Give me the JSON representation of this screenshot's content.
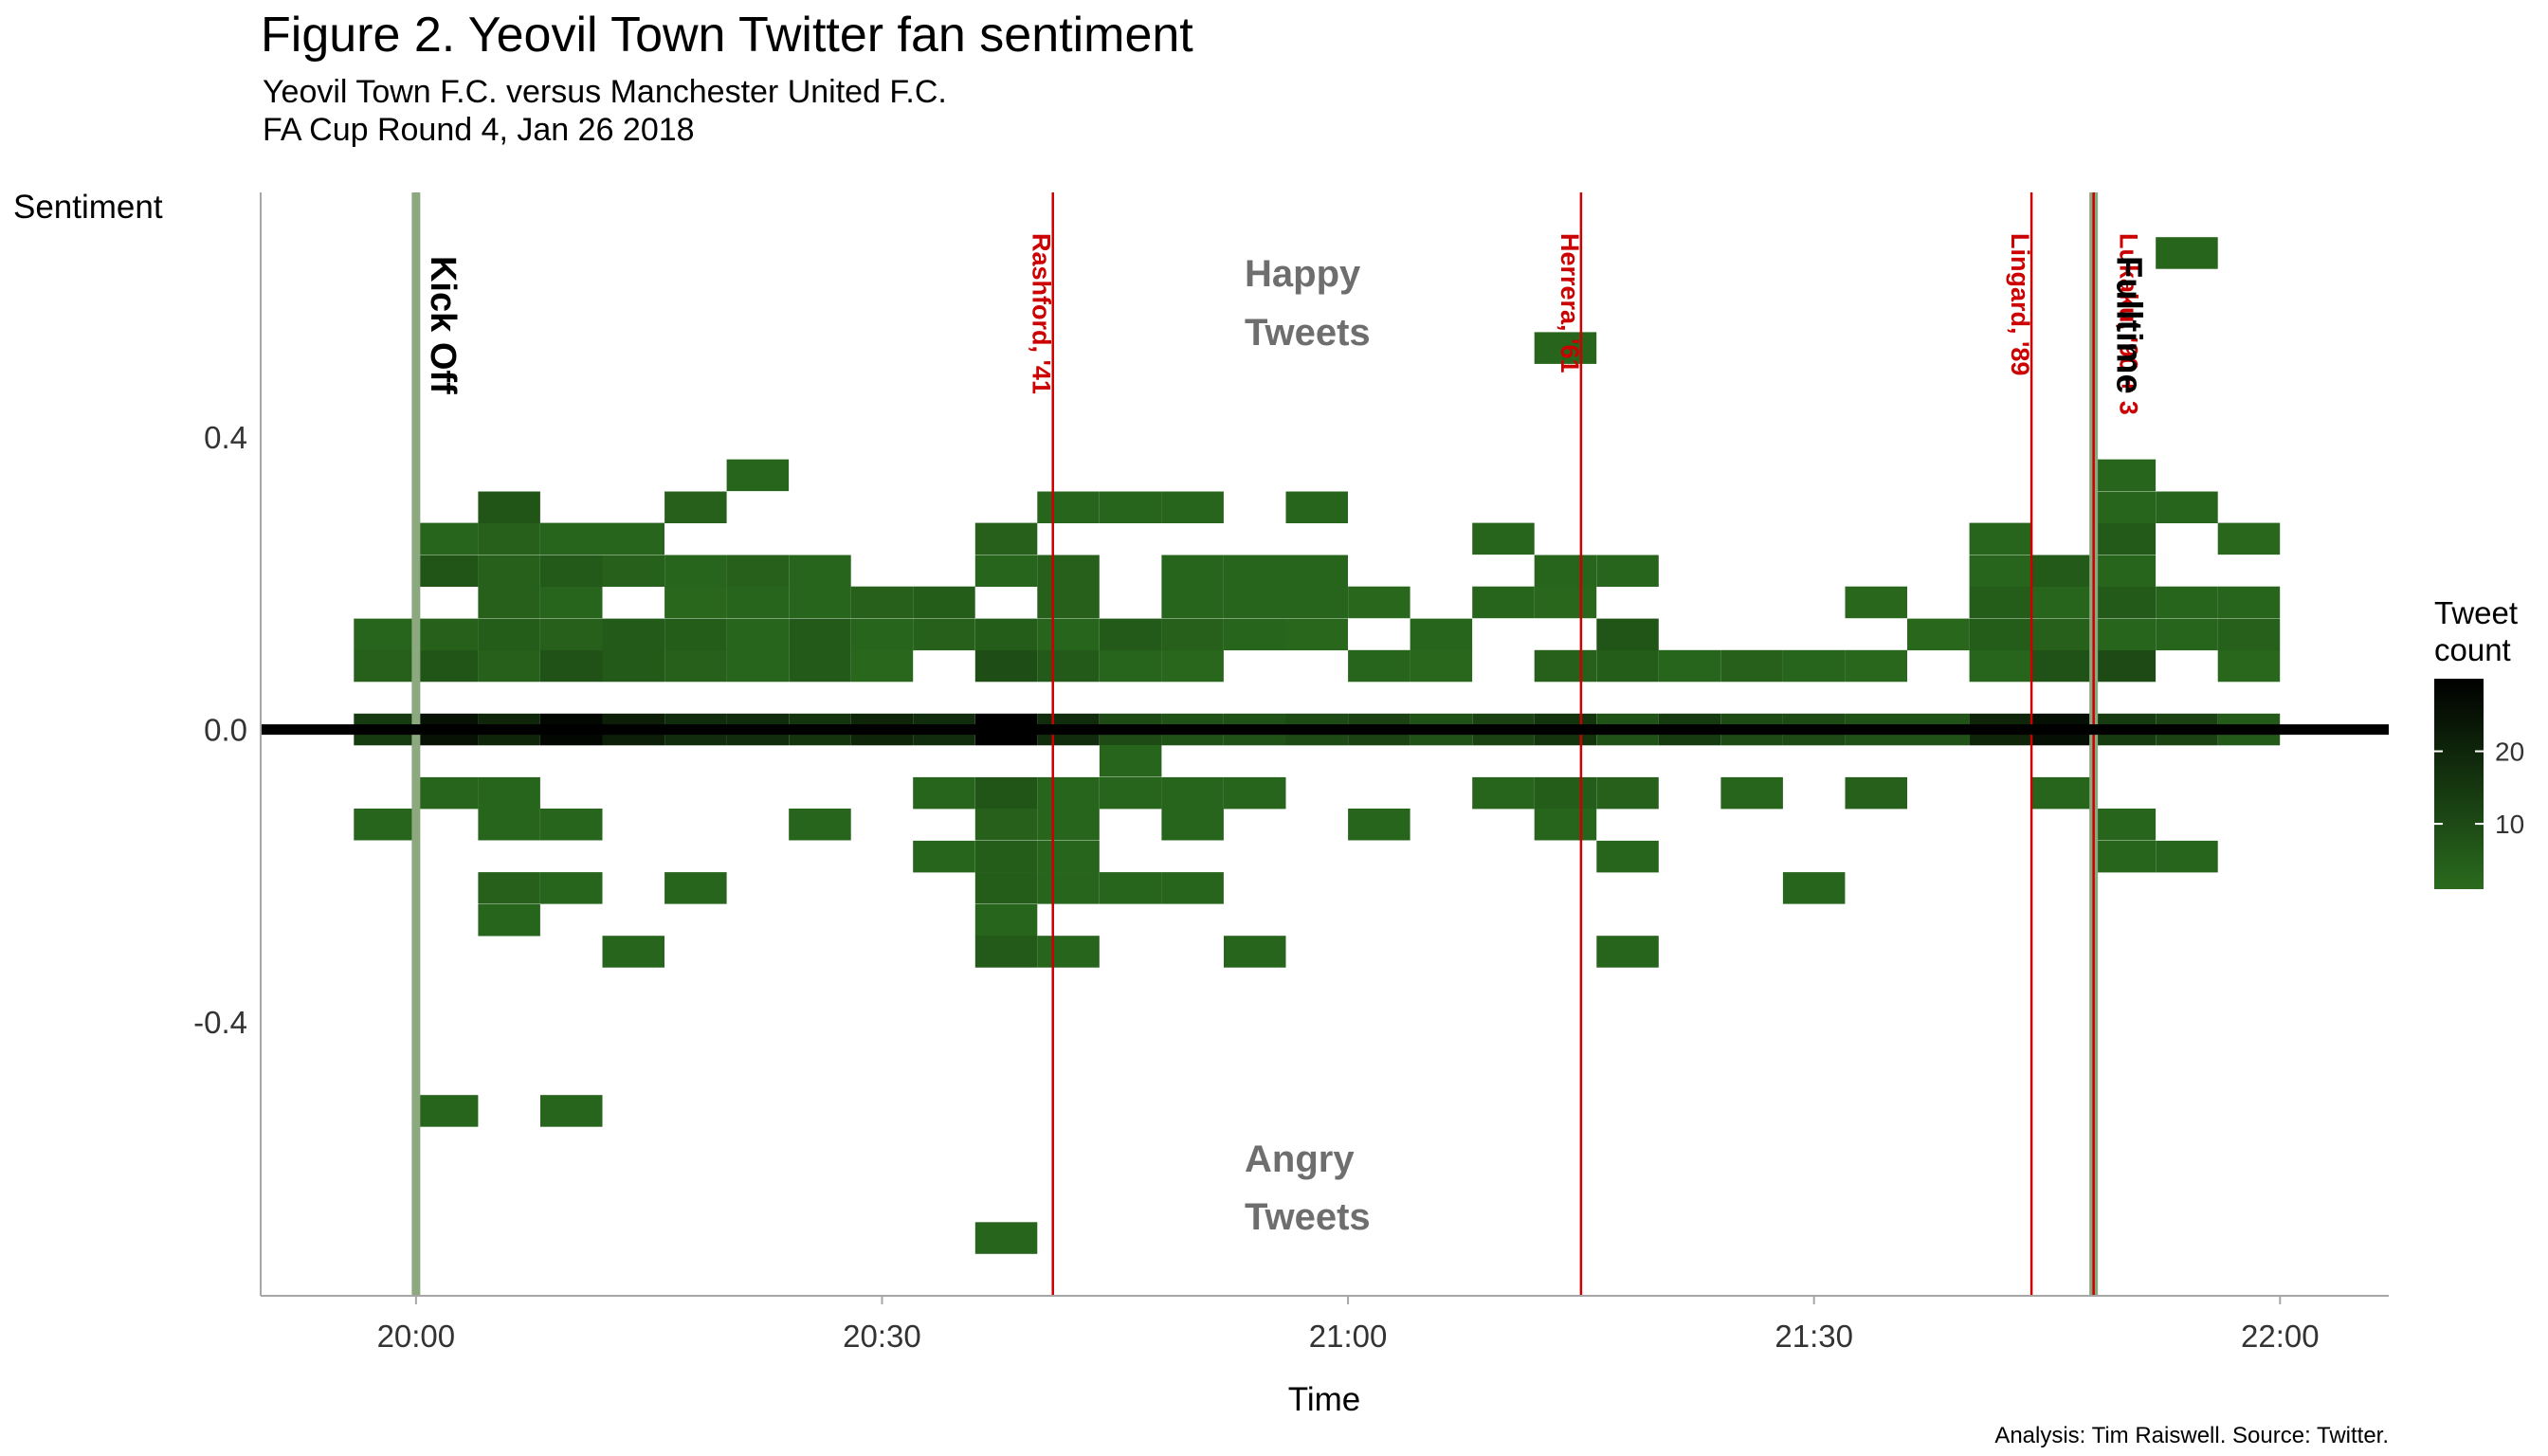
{
  "chart_data": {
    "type": "heatmap",
    "title": "Figure 2. Yeovil Town Twitter fan sentiment",
    "subtitle_lines": [
      "Yeovil Town F.C. versus Manchester United F.C.",
      "FA Cup Round 4, Jan 26 2018"
    ],
    "xlabel": "Time",
    "ylabel": "Sentiment",
    "caption": "Analysis: Tim Raiswell. Source: Twitter.",
    "x_ticks": [
      "20:00",
      "20:30",
      "21:00",
      "21:30",
      "22:00"
    ],
    "y_ticks": [
      "0.4",
      "0.0",
      "-0.4"
    ],
    "y_tick_values": [
      0.4,
      0.0,
      -0.4
    ],
    "xlim": [
      "19:50",
      "22:07"
    ],
    "ylim": [
      -0.775,
      0.735
    ],
    "bin_minutes": 4,
    "sentiment_bin": 0.0435,
    "legend": {
      "title_lines": [
        "Tweet",
        "count"
      ],
      "ticks": [
        "20",
        "10"
      ],
      "tick_values": [
        20,
        10
      ],
      "range": [
        1,
        30
      ],
      "position": "right"
    },
    "colors": {
      "low": "#2a6b1e",
      "high": "#000000",
      "event_line": "#cc0000",
      "marker_line": "#8ca87e",
      "zero_line": "#000000"
    },
    "region_labels": {
      "happy": [
        "Happy",
        "Tweets"
      ],
      "angry": [
        "Angry",
        "Tweets"
      ]
    },
    "markers": [
      {
        "time": "20:00",
        "label": "Kick Off"
      },
      {
        "time": "21:48",
        "label": "Fulltime"
      }
    ],
    "events": [
      {
        "time": "20:41",
        "label": "Rashford, '41"
      },
      {
        "time": "21:15",
        "label": "Herrera, '61"
      },
      {
        "time": "21:44",
        "label": "Lingard, '89"
      },
      {
        "time": "21:48",
        "label": "Lukaku, '90 + 3"
      }
    ],
    "cells": [
      [
        "19:58",
        0.0,
        14
      ],
      [
        "20:02",
        0.0,
        25
      ],
      [
        "20:06",
        0.0,
        20
      ],
      [
        "20:10",
        0.0,
        28
      ],
      [
        "20:14",
        0.0,
        22
      ],
      [
        "20:18",
        0.0,
        18
      ],
      [
        "20:22",
        0.0,
        18
      ],
      [
        "20:26",
        0.0,
        16
      ],
      [
        "20:30",
        0.0,
        20
      ],
      [
        "20:34",
        0.0,
        18
      ],
      [
        "20:38",
        0.0,
        30
      ],
      [
        "20:42",
        0.0,
        18
      ],
      [
        "20:46",
        0.0,
        10
      ],
      [
        "20:50",
        0.0,
        8
      ],
      [
        "20:54",
        0.0,
        8
      ],
      [
        "20:58",
        0.0,
        10
      ],
      [
        "21:02",
        0.0,
        12
      ],
      [
        "21:06",
        0.0,
        8
      ],
      [
        "21:10",
        0.0,
        12
      ],
      [
        "21:14",
        0.0,
        16
      ],
      [
        "21:18",
        0.0,
        8
      ],
      [
        "21:22",
        0.0,
        14
      ],
      [
        "21:26",
        0.0,
        10
      ],
      [
        "21:30",
        0.0,
        10
      ],
      [
        "21:34",
        0.0,
        8
      ],
      [
        "21:38",
        0.0,
        8
      ],
      [
        "21:42",
        0.0,
        20
      ],
      [
        "21:46",
        0.0,
        26
      ],
      [
        "21:50",
        0.0,
        14
      ],
      [
        "21:54",
        0.0,
        12
      ],
      [
        "21:58",
        0.0,
        6
      ],
      [
        "19:58",
        0.087,
        4
      ],
      [
        "20:02",
        0.087,
        7
      ],
      [
        "20:06",
        0.087,
        4
      ],
      [
        "20:10",
        0.087,
        8
      ],
      [
        "20:14",
        0.087,
        6
      ],
      [
        "20:18",
        0.087,
        4
      ],
      [
        "20:22",
        0.087,
        3
      ],
      [
        "20:26",
        0.087,
        6
      ],
      [
        "20:30",
        0.087,
        2
      ],
      [
        "20:38",
        0.087,
        9
      ],
      [
        "20:42",
        0.087,
        6
      ],
      [
        "20:46",
        0.087,
        3
      ],
      [
        "20:50",
        0.087,
        2
      ],
      [
        "21:02",
        0.087,
        3
      ],
      [
        "21:06",
        0.087,
        2
      ],
      [
        "21:14",
        0.087,
        4
      ],
      [
        "21:18",
        0.087,
        5
      ],
      [
        "21:22",
        0.087,
        3
      ],
      [
        "21:26",
        0.087,
        4
      ],
      [
        "21:30",
        0.087,
        3
      ],
      [
        "21:34",
        0.087,
        2
      ],
      [
        "21:42",
        0.087,
        3
      ],
      [
        "21:46",
        0.087,
        8
      ],
      [
        "21:50",
        0.087,
        10
      ],
      [
        "21:58",
        0.087,
        2
      ],
      [
        "19:58",
        0.13,
        3
      ],
      [
        "20:02",
        0.13,
        4
      ],
      [
        "20:06",
        0.13,
        5
      ],
      [
        "20:10",
        0.13,
        4
      ],
      [
        "20:14",
        0.13,
        6
      ],
      [
        "20:18",
        0.13,
        5
      ],
      [
        "20:22",
        0.13,
        3
      ],
      [
        "20:26",
        0.13,
        6
      ],
      [
        "20:30",
        0.13,
        3
      ],
      [
        "20:34",
        0.13,
        4
      ],
      [
        "20:38",
        0.13,
        5
      ],
      [
        "20:42",
        0.13,
        3
      ],
      [
        "20:46",
        0.13,
        6
      ],
      [
        "20:50",
        0.13,
        4
      ],
      [
        "20:54",
        0.13,
        3
      ],
      [
        "20:58",
        0.13,
        2
      ],
      [
        "21:06",
        0.13,
        3
      ],
      [
        "21:18",
        0.13,
        7
      ],
      [
        "21:38",
        0.13,
        2
      ],
      [
        "21:42",
        0.13,
        5
      ],
      [
        "21:46",
        0.13,
        4
      ],
      [
        "21:50",
        0.13,
        3
      ],
      [
        "21:54",
        0.13,
        3
      ],
      [
        "21:58",
        0.13,
        4
      ],
      [
        "20:06",
        0.174,
        4
      ],
      [
        "20:10",
        0.174,
        3
      ],
      [
        "20:18",
        0.174,
        2
      ],
      [
        "20:22",
        0.174,
        3
      ],
      [
        "20:26",
        0.174,
        3
      ],
      [
        "20:30",
        0.174,
        4
      ],
      [
        "20:34",
        0.174,
        5
      ],
      [
        "20:42",
        0.174,
        4
      ],
      [
        "20:50",
        0.174,
        3
      ],
      [
        "20:54",
        0.174,
        3
      ],
      [
        "20:58",
        0.174,
        3
      ],
      [
        "21:02",
        0.174,
        2
      ],
      [
        "21:10",
        0.174,
        3
      ],
      [
        "21:14",
        0.174,
        2
      ],
      [
        "21:34",
        0.174,
        2
      ],
      [
        "21:42",
        0.174,
        5
      ],
      [
        "21:46",
        0.174,
        3
      ],
      [
        "21:50",
        0.174,
        6
      ],
      [
        "21:54",
        0.174,
        3
      ],
      [
        "21:58",
        0.174,
        3
      ],
      [
        "20:02",
        0.217,
        7
      ],
      [
        "20:06",
        0.217,
        4
      ],
      [
        "20:10",
        0.217,
        6
      ],
      [
        "20:14",
        0.217,
        4
      ],
      [
        "20:18",
        0.217,
        3
      ],
      [
        "20:22",
        0.217,
        4
      ],
      [
        "20:26",
        0.217,
        3
      ],
      [
        "20:38",
        0.217,
        3
      ],
      [
        "20:42",
        0.217,
        4
      ],
      [
        "20:50",
        0.217,
        3
      ],
      [
        "20:54",
        0.217,
        3
      ],
      [
        "20:58",
        0.217,
        3
      ],
      [
        "21:14",
        0.217,
        3
      ],
      [
        "21:18",
        0.217,
        3
      ],
      [
        "21:42",
        0.217,
        3
      ],
      [
        "21:46",
        0.217,
        6
      ],
      [
        "21:50",
        0.217,
        3
      ],
      [
        "20:02",
        0.261,
        3
      ],
      [
        "20:06",
        0.261,
        4
      ],
      [
        "20:10",
        0.261,
        3
      ],
      [
        "20:14",
        0.261,
        3
      ],
      [
        "20:38",
        0.261,
        4
      ],
      [
        "21:10",
        0.261,
        3
      ],
      [
        "21:42",
        0.261,
        3
      ],
      [
        "21:50",
        0.261,
        6
      ],
      [
        "21:58",
        0.261,
        2
      ],
      [
        "20:06",
        0.304,
        7
      ],
      [
        "20:18",
        0.304,
        4
      ],
      [
        "20:42",
        0.304,
        3
      ],
      [
        "20:46",
        0.304,
        3
      ],
      [
        "20:50",
        0.304,
        3
      ],
      [
        "20:58",
        0.304,
        3
      ],
      [
        "21:50",
        0.304,
        3
      ],
      [
        "21:54",
        0.304,
        3
      ],
      [
        "20:22",
        0.348,
        3
      ],
      [
        "21:50",
        0.348,
        3
      ],
      [
        "21:14",
        0.522,
        3
      ],
      [
        "21:54",
        0.652,
        3
      ],
      [
        "20:02",
        -0.087,
        3
      ],
      [
        "20:06",
        -0.087,
        3
      ],
      [
        "20:34",
        -0.087,
        3
      ],
      [
        "20:38",
        -0.087,
        7
      ],
      [
        "20:42",
        -0.087,
        3
      ],
      [
        "20:46",
        -0.087,
        3
      ],
      [
        "20:50",
        -0.087,
        3
      ],
      [
        "20:54",
        -0.087,
        3
      ],
      [
        "21:10",
        -0.087,
        3
      ],
      [
        "21:14",
        -0.087,
        5
      ],
      [
        "21:18",
        -0.087,
        4
      ],
      [
        "21:26",
        -0.087,
        3
      ],
      [
        "21:34",
        -0.087,
        4
      ],
      [
        "21:46",
        -0.087,
        3
      ],
      [
        "20:46",
        -0.043,
        3
      ],
      [
        "19:58",
        -0.13,
        3
      ],
      [
        "20:06",
        -0.13,
        3
      ],
      [
        "20:10",
        -0.13,
        3
      ],
      [
        "20:26",
        -0.13,
        3
      ],
      [
        "20:38",
        -0.13,
        4
      ],
      [
        "20:42",
        -0.13,
        3
      ],
      [
        "20:50",
        -0.13,
        3
      ],
      [
        "21:02",
        -0.13,
        3
      ],
      [
        "21:14",
        -0.13,
        3
      ],
      [
        "21:50",
        -0.13,
        3
      ],
      [
        "20:34",
        -0.174,
        3
      ],
      [
        "20:38",
        -0.174,
        5
      ],
      [
        "20:42",
        -0.174,
        3
      ],
      [
        "21:18",
        -0.174,
        3
      ],
      [
        "21:50",
        -0.174,
        3
      ],
      [
        "21:54",
        -0.174,
        3
      ],
      [
        "20:06",
        -0.217,
        4
      ],
      [
        "20:10",
        -0.217,
        3
      ],
      [
        "20:18",
        -0.217,
        3
      ],
      [
        "20:38",
        -0.217,
        5
      ],
      [
        "20:42",
        -0.217,
        3
      ],
      [
        "20:46",
        -0.217,
        3
      ],
      [
        "20:50",
        -0.217,
        3
      ],
      [
        "21:30",
        -0.217,
        3
      ],
      [
        "20:06",
        -0.261,
        3
      ],
      [
        "20:38",
        -0.261,
        3
      ],
      [
        "20:14",
        -0.304,
        3
      ],
      [
        "20:38",
        -0.304,
        6
      ],
      [
        "20:42",
        -0.304,
        3
      ],
      [
        "20:54",
        -0.304,
        3
      ],
      [
        "21:18",
        -0.304,
        3
      ],
      [
        "20:02",
        -0.522,
        3
      ],
      [
        "20:10",
        -0.522,
        3
      ],
      [
        "20:38",
        -0.696,
        3
      ]
    ]
  }
}
